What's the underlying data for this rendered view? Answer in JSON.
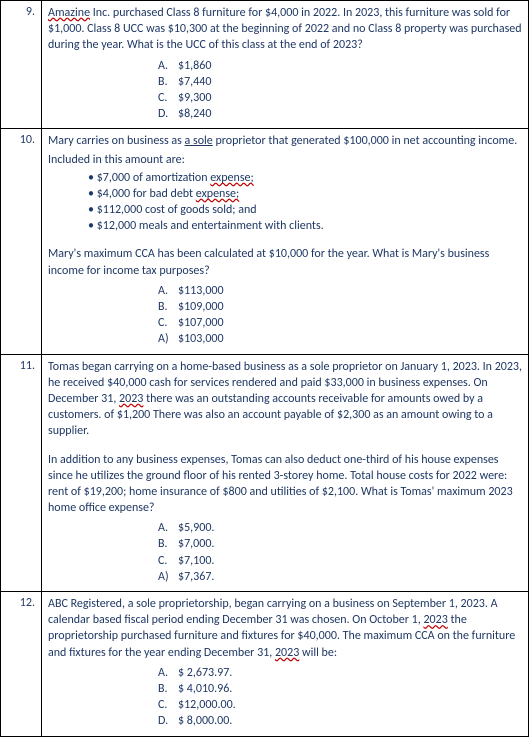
{
  "questions": [
    {
      "num": "9.",
      "paras": [
        "<span class='wavy'>Amazine</span> Inc. purchased Class 8 furniture for $4,000 in 2022. In 2023, this furniture was sold for $1,000. Class 8 UCC was $10,300 at the beginning of 2022 and no Class 8 property was purchased during the year. What is the UCC of this class at the end of 2023?"
      ],
      "bullets": [],
      "paras2": [],
      "options": [
        {
          "l": "A.",
          "t": "$1,860"
        },
        {
          "l": "B.",
          "t": "$7,440"
        },
        {
          "l": "C.",
          "t": "$9,300"
        },
        {
          "l": "D.",
          "t": "$8,240"
        }
      ]
    },
    {
      "num": "10.",
      "paras": [
        "Mary carries on business as <span class='uline'>a sole</span> proprietor that generated $100,000 in net accounting income.",
        "Included in this amount are:"
      ],
      "bullets": [
        "$7,000 of amortization <span class='wavy'>expense;</span>",
        "$4,000 for bad debt <span class='wavy'>expense;</span>",
        "$112,000 cost of goods sold; and",
        "$12,000 meals and entertainment with clients."
      ],
      "paras2": [
        "Mary's maximum CCA has been calculated at $10,000 for the year. What is Mary's business income for income tax purposes?"
      ],
      "options": [
        {
          "l": "A.",
          "t": "$113,000"
        },
        {
          "l": "B.",
          "t": "$109,000"
        },
        {
          "l": "C.",
          "t": "$107,000"
        },
        {
          "l": "A)",
          "t": "$103,000"
        }
      ]
    },
    {
      "num": "11.",
      "paras": [
        "Tomas began carrying on a home-based business as a sole proprietor on January 1, 2023. In 2023, he received $40,000 cash for services rendered and paid $33,000 in business expenses. On December 31, <span class='wavy'>2023</span> there was an outstanding accounts receivable for amounts owed by a customers. of $1,200 There was also an account payable of $2,300 as an amount owing to a supplier."
      ],
      "bullets": [],
      "paras2": [
        "In addition to any business expenses, Tomas can also deduct one-third of his house expenses since he utilizes the ground floor of his rented 3-storey home. Total house costs for 2022 were: rent of $19,200; home insurance of $800 and utilities of $2,100. What is Tomas' maximum 2023 home office expense?"
      ],
      "options": [
        {
          "l": "A.",
          "t": "$5,900."
        },
        {
          "l": "B.",
          "t": "$7,000."
        },
        {
          "l": "C.",
          "t": "$7,100."
        },
        {
          "l": "A)",
          "t": "$7,367."
        }
      ]
    },
    {
      "num": "12.",
      "paras": [
        "ABC Registered, a sole proprietorship, began carrying on a business on September 1, 2023. A calendar based fiscal period ending December 31 was chosen. On October 1, <span class='wavy'>2023</span> the proprietorship purchased furniture and fixtures for $40,000. The maximum CCA on the furniture and fixtures for the year ending December 31, <span class='wavy'>2023</span> will be:"
      ],
      "bullets": [],
      "paras2": [],
      "options": [
        {
          "l": "A.",
          "t": "$ 2,673.97."
        },
        {
          "l": "B.",
          "t": "$ 4,010.96."
        },
        {
          "l": "C.",
          "t": "$12,000.00."
        },
        {
          "l": "D.",
          "t": "$ 8,000.00."
        }
      ]
    }
  ]
}
